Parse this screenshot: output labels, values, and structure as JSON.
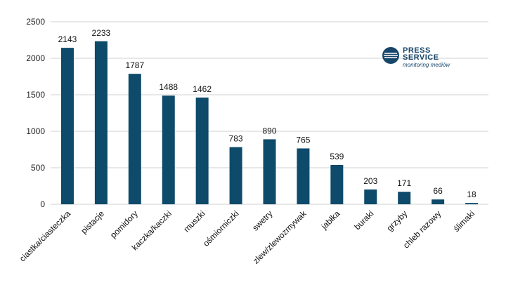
{
  "chart_data": {
    "type": "bar",
    "categories": [
      "ciastka/ciasteczka",
      "pistacje",
      "pomidory",
      "kaczka/kaczki",
      "muszki",
      "ośmiorniczki",
      "swetry",
      "zlew/zlewozmywak",
      "jabłka",
      "buraki",
      "grzyby",
      "chleb razowy",
      "ślimaki"
    ],
    "values": [
      2143,
      2233,
      1787,
      1488,
      1462,
      783,
      890,
      765,
      539,
      203,
      171,
      66,
      18
    ],
    "yticks": [
      0,
      500,
      1000,
      1500,
      2000,
      2500
    ],
    "ylim": [
      0,
      2500
    ],
    "grid": true,
    "bar_color": "#0e4a6a",
    "grid_color": "#d0d0d0",
    "title": "",
    "xlabel": "",
    "ylabel": ""
  },
  "logo": {
    "line1": "PRESS",
    "line2": "SERVICE",
    "subtitle": "monitoring mediów",
    "color": "#16466a"
  }
}
